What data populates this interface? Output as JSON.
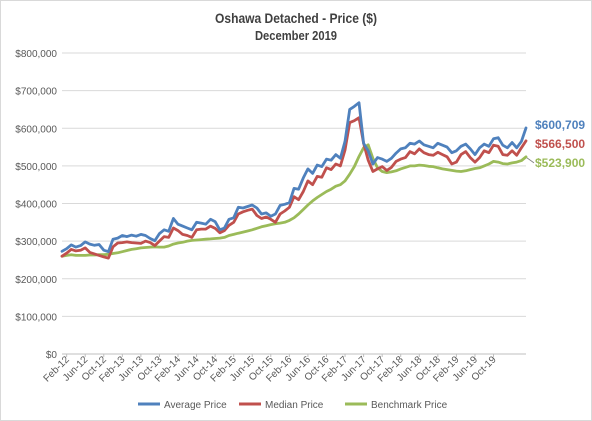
{
  "chart_data": {
    "type": "line",
    "title": "Oshawa Detached - Price ($)",
    "subtitle": "December 2019",
    "xlabel": "",
    "ylabel": "",
    "ylim": [
      0,
      800000
    ],
    "yticks": [
      "$0",
      "$100,000",
      "$200,000",
      "$300,000",
      "$400,000",
      "$500,000",
      "$600,000",
      "$700,000",
      "$800,000"
    ],
    "xtick_labels": [
      "Feb-12",
      "Jun-12",
      "Oct-12",
      "Feb-13",
      "Jun-13",
      "Oct-13",
      "Feb-14",
      "Jun-14",
      "Oct-14",
      "Feb-15",
      "Jun-15",
      "Oct-15",
      "Feb-16",
      "Jun-16",
      "Oct-16",
      "Feb-17",
      "Jun-17",
      "Oct-17",
      "Feb-18",
      "Jun-18",
      "Oct-18",
      "Feb-19",
      "Jun-19",
      "Oct-19"
    ],
    "x_start": "Jan-12",
    "x_end": "Dec-19",
    "grid": true,
    "legend": "bottom",
    "series": [
      {
        "name": "Average Price",
        "color": "#4f81bd",
        "end_label": "$600,709",
        "values": [
          273000,
          280000,
          290000,
          284000,
          288000,
          298000,
          292000,
          289000,
          291000,
          276000,
          272000,
          305000,
          308000,
          315000,
          312000,
          316000,
          313000,
          318000,
          315000,
          307000,
          301000,
          320000,
          330000,
          326000,
          360000,
          345000,
          340000,
          335000,
          330000,
          350000,
          348000,
          345000,
          358000,
          352000,
          330000,
          335000,
          358000,
          362000,
          390000,
          388000,
          392000,
          396000,
          388000,
          372000,
          375000,
          366000,
          372000,
          395000,
          398000,
          402000,
          440000,
          438000,
          468000,
          492000,
          480000,
          502000,
          498000,
          518000,
          515000,
          530000,
          520000,
          565000,
          650000,
          658000,
          668000,
          560000,
          540000,
          505000,
          522000,
          518000,
          512000,
          520000,
          534000,
          545000,
          548000,
          560000,
          558000,
          566000,
          556000,
          552000,
          548000,
          560000,
          555000,
          550000,
          535000,
          540000,
          552000,
          558000,
          545000,
          530000,
          548000,
          558000,
          552000,
          572000,
          575000,
          555000,
          548000,
          562000,
          548000,
          565000,
          600709
        ]
      },
      {
        "name": "Median Price",
        "color": "#c0504d",
        "end_label": "$566,500",
        "values": [
          260000,
          268000,
          278000,
          274000,
          276000,
          282000,
          270000,
          266000,
          262000,
          258000,
          255000,
          285000,
          295000,
          296000,
          298000,
          296000,
          295000,
          294000,
          300000,
          296000,
          288000,
          300000,
          312000,
          310000,
          335000,
          328000,
          318000,
          315000,
          310000,
          330000,
          332000,
          332000,
          340000,
          334000,
          322000,
          328000,
          342000,
          350000,
          372000,
          378000,
          382000,
          385000,
          368000,
          360000,
          364000,
          358000,
          350000,
          372000,
          380000,
          390000,
          418000,
          410000,
          432000,
          460000,
          450000,
          472000,
          470000,
          495000,
          490000,
          505000,
          500000,
          542000,
          615000,
          620000,
          628000,
          560000,
          515000,
          485000,
          492000,
          498000,
          488000,
          496000,
          512000,
          518000,
          522000,
          538000,
          532000,
          545000,
          535000,
          530000,
          528000,
          536000,
          530000,
          524000,
          505000,
          510000,
          530000,
          538000,
          522000,
          510000,
          522000,
          540000,
          535000,
          555000,
          552000,
          530000,
          528000,
          540000,
          528000,
          548000,
          566500
        ]
      },
      {
        "name": "Benchmark Price",
        "color": "#9bbb59",
        "end_label": "$523,900",
        "values": [
          260000,
          262000,
          264000,
          262000,
          262000,
          262000,
          263000,
          263000,
          264000,
          264000,
          265000,
          267000,
          269000,
          272000,
          275000,
          278000,
          280000,
          282000,
          283000,
          284000,
          285000,
          284000,
          284000,
          287000,
          292000,
          295000,
          297000,
          300000,
          302000,
          303000,
          304000,
          305000,
          306000,
          307000,
          308000,
          310000,
          315000,
          318000,
          321000,
          324000,
          327000,
          330000,
          334000,
          338000,
          341000,
          344000,
          346000,
          348000,
          350000,
          355000,
          362000,
          372000,
          384000,
          396000,
          407000,
          416000,
          424000,
          432000,
          438000,
          446000,
          450000,
          460000,
          478000,
          498000,
          525000,
          548000,
          556000,
          520000,
          495000,
          485000,
          482000,
          484000,
          487000,
          492000,
          496000,
          500000,
          500000,
          502000,
          501000,
          499000,
          498000,
          495000,
          492000,
          490000,
          488000,
          486000,
          485000,
          487000,
          490000,
          493000,
          495000,
          500000,
          505000,
          512000,
          510000,
          506000,
          505000,
          508000,
          510000,
          514000,
          523900
        ]
      }
    ]
  }
}
